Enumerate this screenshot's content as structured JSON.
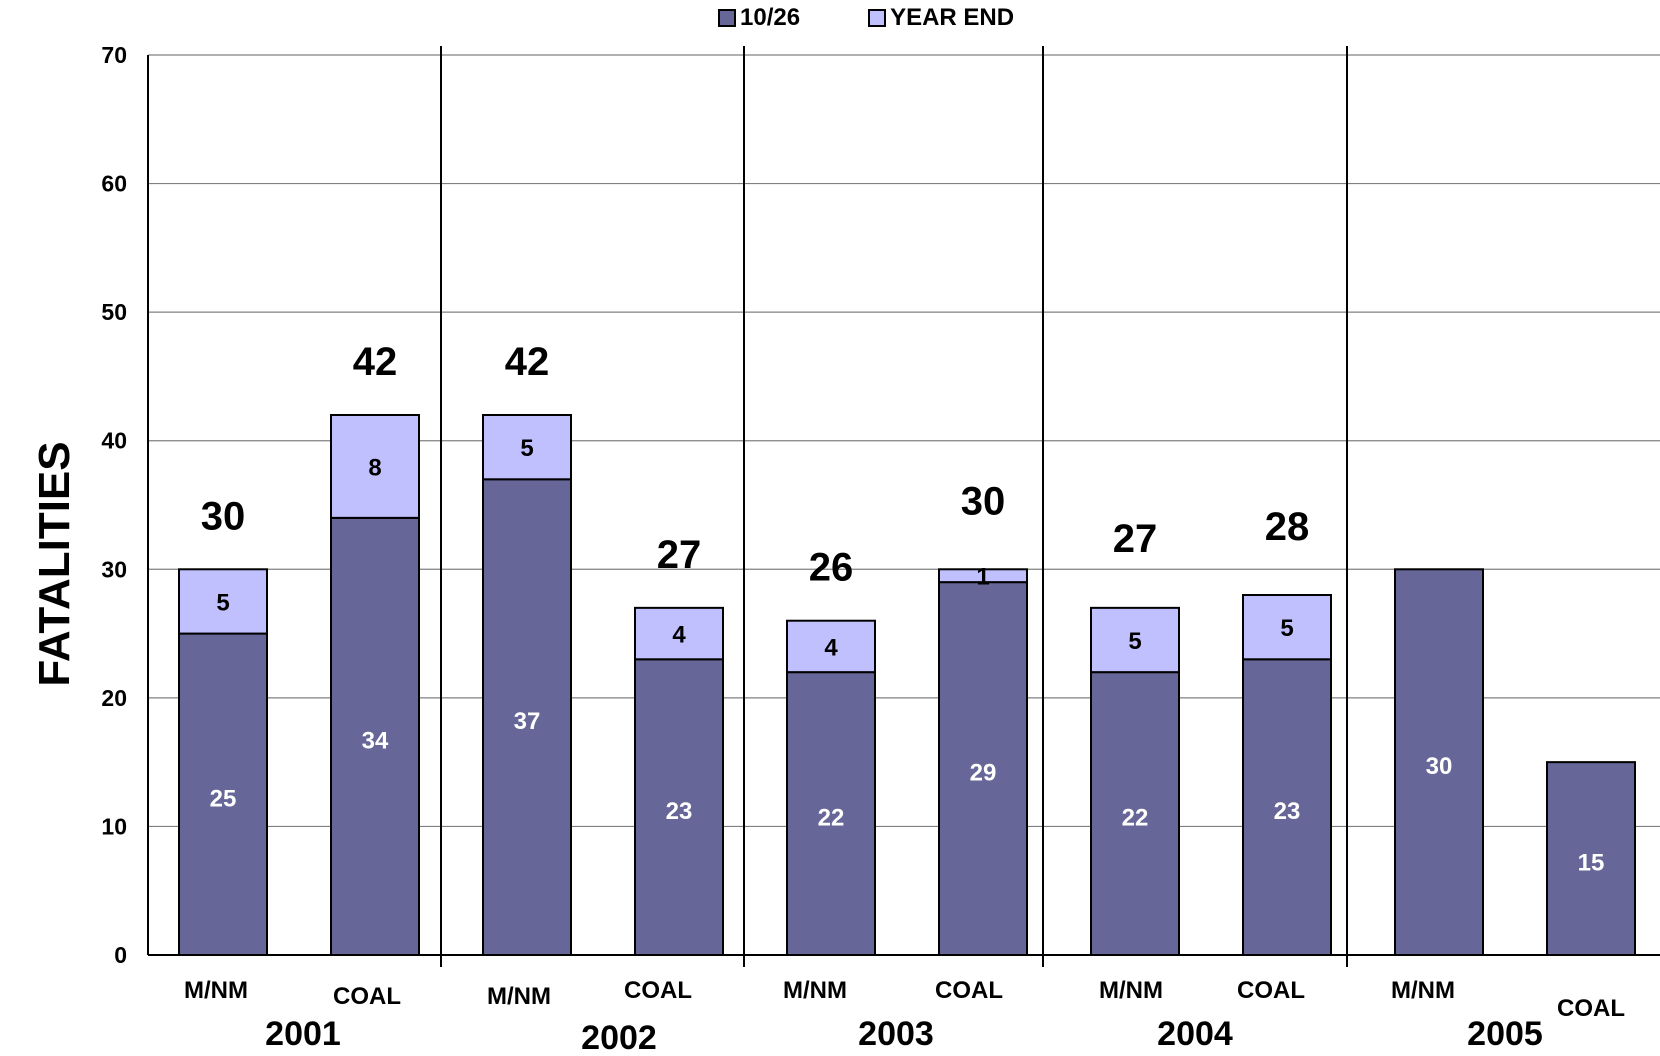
{
  "chart_data": {
    "type": "bar",
    "stacked": true,
    "title": "",
    "xlabel": "",
    "ylabel": "FATALITIES",
    "ylim": [
      0,
      70
    ],
    "yticks": [
      0,
      10,
      20,
      30,
      40,
      50,
      60,
      70
    ],
    "grid": true,
    "legend_position": "top-center",
    "categories": [
      "M/NM",
      "COAL",
      "M/NM",
      "COAL",
      "M/NM",
      "COAL",
      "M/NM",
      "COAL",
      "M/NM",
      "COAL"
    ],
    "groups": [
      {
        "label": "2001",
        "categories": [
          "M/NM",
          "COAL"
        ]
      },
      {
        "label": "2002",
        "categories": [
          "M/NM",
          "COAL"
        ]
      },
      {
        "label": "2003",
        "categories": [
          "M/NM",
          "COAL"
        ]
      },
      {
        "label": "2004",
        "categories": [
          "M/NM",
          "COAL"
        ]
      },
      {
        "label": "2005",
        "categories": [
          "M/NM",
          "COAL"
        ]
      }
    ],
    "series": [
      {
        "name": "10/26",
        "color": "#666699",
        "values": [
          25,
          34,
          37,
          23,
          22,
          29,
          22,
          23,
          30,
          15
        ]
      },
      {
        "name": "YEAR END",
        "color": "#c0c0ff",
        "values": [
          5,
          8,
          5,
          4,
          4,
          1,
          5,
          5,
          null,
          null
        ]
      }
    ],
    "totals": [
      30,
      42,
      42,
      27,
      26,
      30,
      27,
      28,
      null,
      null
    ]
  }
}
